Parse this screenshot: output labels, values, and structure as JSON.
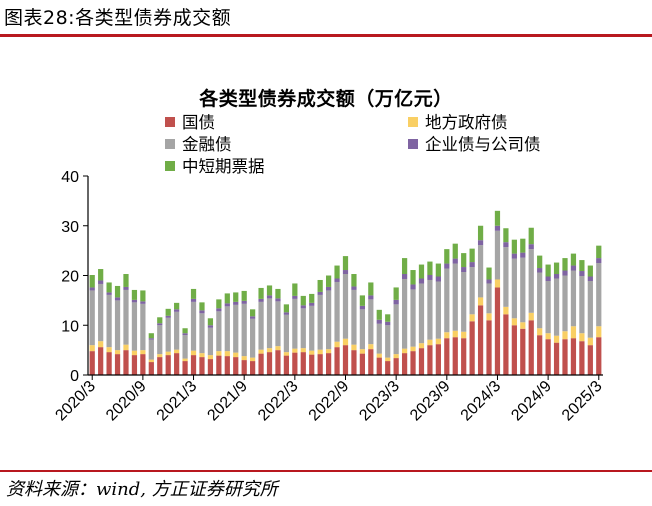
{
  "figure": {
    "caption": "图表28:各类型债券成交额",
    "source": "资料来源：wind, 方正证券研究所"
  },
  "colors": {
    "guozhai": "#c0504d",
    "difangzhengfuzhai": "#f9cf64",
    "jinrongzhai": "#a5a5a5",
    "qiyezhai": "#7f64a2",
    "zhongduanqi": "#70ad47",
    "rule": "#b8181f"
  },
  "chart_data": {
    "type": "bar",
    "stacked": true,
    "title": "各类型债券成交额（万亿元）",
    "xlabel": "",
    "ylabel": "",
    "ylim": [
      0,
      40
    ],
    "yticks": [
      0,
      10,
      20,
      30,
      40
    ],
    "xticks": [
      "2020/3",
      "2020/9",
      "2021/3",
      "2021/9",
      "2022/3",
      "2022/9",
      "2023/3",
      "2023/9",
      "2024/3",
      "2024/9",
      "2025/3"
    ],
    "legend": [
      {
        "name": "国债",
        "color_key": "guozhai"
      },
      {
        "name": "地方政府债",
        "color_key": "difangzhengfuzhai"
      },
      {
        "name": "金融债",
        "color_key": "jinrongzhai"
      },
      {
        "name": "企业债与公司债",
        "color_key": "qiyezhai"
      },
      {
        "name": "中短期票据",
        "color_key": "zhongduanqi"
      }
    ],
    "categories": [
      "2020/3",
      "2020/4",
      "2020/5",
      "2020/6",
      "2020/7",
      "2020/8",
      "2020/9",
      "2020/10",
      "2020/11",
      "2020/12",
      "2021/1",
      "2021/2",
      "2021/3",
      "2021/4",
      "2021/5",
      "2021/6",
      "2021/7",
      "2021/8",
      "2021/9",
      "2021/10",
      "2021/11",
      "2021/12",
      "2022/1",
      "2022/2",
      "2022/3",
      "2022/4",
      "2022/5",
      "2022/6",
      "2022/7",
      "2022/8",
      "2022/9",
      "2022/10",
      "2022/11",
      "2022/12",
      "2023/1",
      "2023/2",
      "2023/3",
      "2023/4",
      "2023/5",
      "2023/6",
      "2023/7",
      "2023/8",
      "2023/9",
      "2023/10",
      "2023/11",
      "2023/12",
      "2024/1",
      "2024/2",
      "2024/3",
      "2024/4",
      "2024/5",
      "2024/6",
      "2024/7",
      "2024/8",
      "2024/9",
      "2024/10",
      "2024/11",
      "2024/12",
      "2025/1",
      "2025/2",
      "2025/3"
    ],
    "series": [
      {
        "name": "国债",
        "values": [
          4.8,
          5.6,
          4.6,
          4.2,
          5.0,
          4.0,
          4.2,
          2.6,
          3.6,
          4.0,
          4.4,
          2.8,
          4.0,
          3.6,
          3.2,
          3.9,
          3.8,
          3.6,
          3.0,
          2.8,
          4.3,
          4.6,
          5.0,
          3.9,
          4.5,
          4.6,
          4.1,
          4.2,
          4.4,
          5.6,
          6.0,
          5.0,
          4.3,
          5.2,
          3.5,
          2.8,
          3.4,
          4.4,
          4.8,
          5.4,
          6.0,
          6.2,
          7.4,
          7.6,
          7.4,
          10.8,
          14.0,
          11.0,
          17.6,
          12.2,
          10.0,
          9.3,
          11.0,
          8.0,
          7.2,
          6.5,
          7.2,
          7.4,
          6.8,
          6.0,
          7.6
        ]
      },
      {
        "name": "地方政府债",
        "values": [
          1.2,
          1.2,
          1.0,
          0.8,
          1.1,
          0.9,
          0.8,
          0.5,
          0.6,
          0.7,
          0.7,
          0.5,
          0.9,
          0.8,
          0.8,
          0.9,
          1.0,
          0.9,
          0.8,
          0.7,
          0.8,
          0.8,
          0.8,
          0.7,
          0.8,
          0.8,
          0.8,
          0.9,
          0.8,
          1.1,
          1.3,
          1.1,
          0.9,
          1.0,
          0.8,
          0.7,
          0.8,
          0.9,
          0.9,
          1.0,
          1.1,
          1.1,
          1.2,
          1.3,
          1.3,
          1.4,
          1.6,
          1.4,
          1.6,
          1.5,
          1.4,
          1.3,
          1.5,
          1.4,
          1.2,
          1.4,
          1.6,
          2.4,
          1.6,
          1.5,
          2.2
        ]
      },
      {
        "name": "金融债",
        "values": [
          11.0,
          11.5,
          10.5,
          10.0,
          11.0,
          9.7,
          9.3,
          4.0,
          5.8,
          6.8,
          7.6,
          4.7,
          9.8,
          8.0,
          5.5,
          8.0,
          9.0,
          9.6,
          10.5,
          7.8,
          9.6,
          10.0,
          9.0,
          7.5,
          10.0,
          8.0,
          9.0,
          11.0,
          11.8,
          12.0,
          13.0,
          11.0,
          8.0,
          9.0,
          6.0,
          6.5,
          10.0,
          14.0,
          11.5,
          12.0,
          12.0,
          11.5,
          12.8,
          13.5,
          12.0,
          9.5,
          10.5,
          6.0,
          9.8,
          12.0,
          12.0,
          13.0,
          12.8,
          11.2,
          10.5,
          11.5,
          11.2,
          11.2,
          11.5,
          11.4,
          12.7
        ]
      },
      {
        "name": "企业债与公司债",
        "values": [
          0.6,
          0.7,
          0.5,
          0.6,
          0.6,
          0.5,
          0.5,
          0.3,
          0.4,
          0.4,
          0.5,
          0.4,
          0.6,
          0.6,
          0.5,
          0.6,
          0.6,
          0.6,
          0.6,
          0.5,
          0.6,
          0.6,
          0.6,
          0.5,
          0.6,
          0.6,
          0.6,
          0.6,
          0.7,
          0.7,
          0.8,
          0.7,
          0.7,
          0.8,
          0.8,
          0.7,
          0.9,
          1.0,
          1.0,
          1.0,
          1.0,
          1.0,
          1.0,
          1.0,
          1.0,
          1.0,
          1.0,
          0.8,
          1.0,
          1.0,
          1.0,
          1.0,
          1.0,
          0.9,
          0.9,
          0.9,
          1.0,
          1.0,
          1.0,
          0.9,
          1.0
        ]
      },
      {
        "name": "中短期票据",
        "values": [
          2.5,
          2.3,
          2.0,
          2.3,
          2.6,
          2.0,
          2.2,
          1.0,
          1.2,
          1.4,
          1.3,
          1.0,
          2.0,
          1.6,
          1.4,
          1.8,
          2.0,
          1.9,
          2.0,
          1.4,
          2.2,
          2.0,
          1.9,
          1.6,
          2.5,
          1.9,
          1.8,
          2.4,
          2.3,
          2.6,
          2.8,
          2.5,
          2.1,
          2.6,
          2.0,
          1.5,
          2.5,
          3.2,
          2.9,
          2.8,
          2.7,
          2.6,
          2.9,
          3.0,
          2.8,
          2.7,
          2.9,
          2.4,
          3.0,
          2.8,
          2.8,
          2.8,
          3.3,
          2.5,
          2.4,
          2.3,
          2.5,
          2.4,
          2.2,
          2.2,
          2.5
        ]
      }
    ]
  }
}
